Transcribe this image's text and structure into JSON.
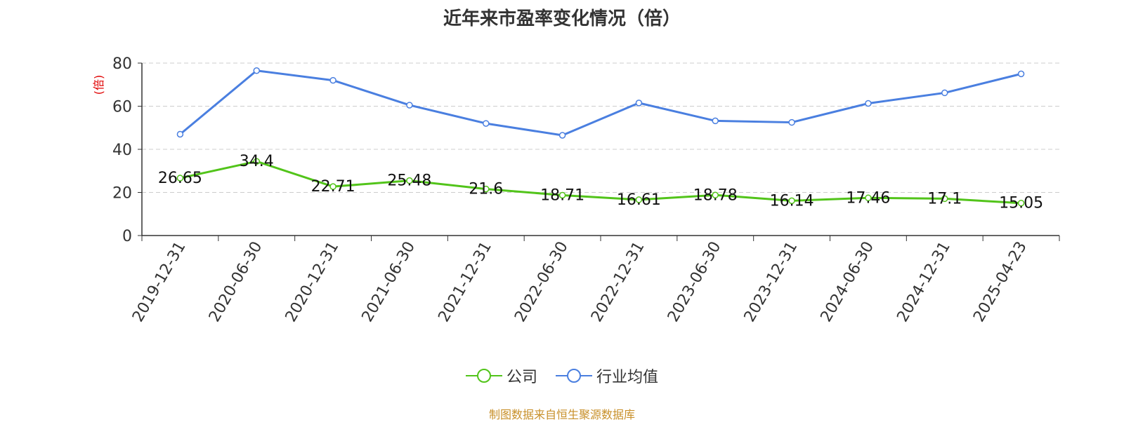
{
  "title": "近年来市盈率变化情况（倍）",
  "source": "制图数据来自恒生聚源数据库",
  "colors": {
    "company": "#52c41a",
    "industry": "#4a7fe0",
    "ylabel": "#e00000",
    "source": "#c8902a"
  },
  "chart_data": {
    "type": "line",
    "title": "近年来市盈率变化情况（倍）",
    "xlabel": "",
    "ylabel": "(倍)",
    "ylim": [
      0,
      80
    ],
    "yticks": [
      0,
      20,
      40,
      60,
      80
    ],
    "grid": true,
    "legend_position": "bottom",
    "categories": [
      "2019-12-31",
      "2020-06-30",
      "2020-12-31",
      "2021-06-30",
      "2021-12-31",
      "2022-06-30",
      "2022-12-31",
      "2023-06-30",
      "2023-12-31",
      "2024-06-30",
      "2024-12-31",
      "2025-04-23"
    ],
    "series": [
      {
        "name": "公司",
        "values": [
          26.65,
          34.4,
          22.71,
          25.48,
          21.6,
          18.71,
          16.61,
          18.78,
          16.14,
          17.46,
          17.1,
          15.05
        ],
        "labels": [
          "26.65",
          "34.4",
          "22.71",
          "25.48",
          "21.6",
          "18.71",
          "16.61",
          "18.78",
          "16.14",
          "17.46",
          "17.1",
          "15.05"
        ]
      },
      {
        "name": "行业均值",
        "values": [
          47,
          76.5,
          72,
          60.5,
          52,
          46.5,
          61.5,
          53.2,
          52.5,
          61.3,
          66.2,
          75
        ]
      }
    ]
  }
}
